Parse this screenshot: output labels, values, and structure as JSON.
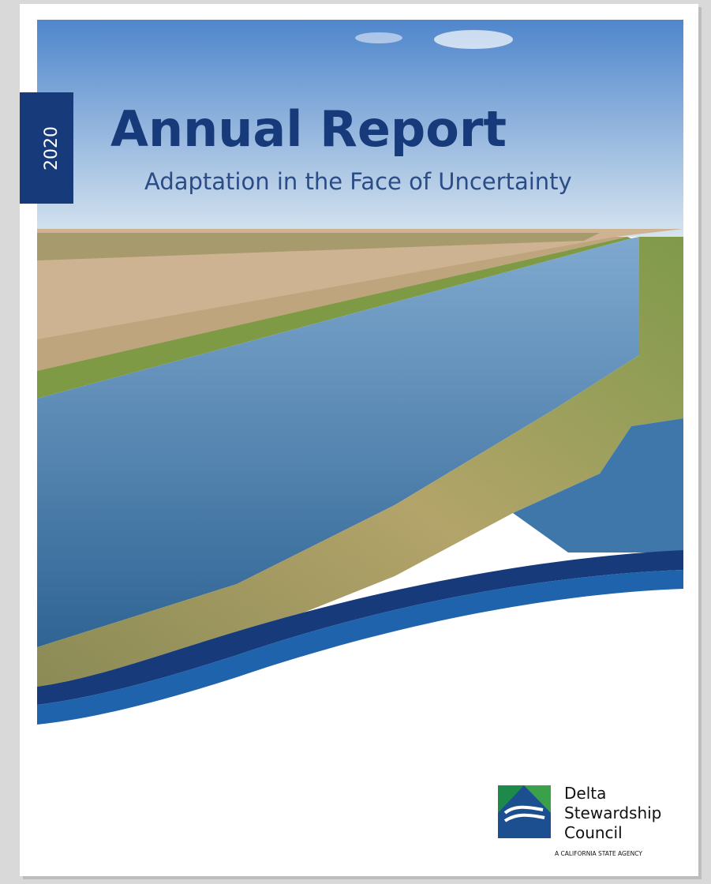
{
  "cover": {
    "year": "2020",
    "title": "Annual Report",
    "subtitle": "Adaptation in the Face of Uncertainty"
  },
  "logo": {
    "lines": [
      "Delta",
      "Stewardship",
      "Council"
    ],
    "tagline": "A CALIFORNIA STATE AGENCY"
  }
}
